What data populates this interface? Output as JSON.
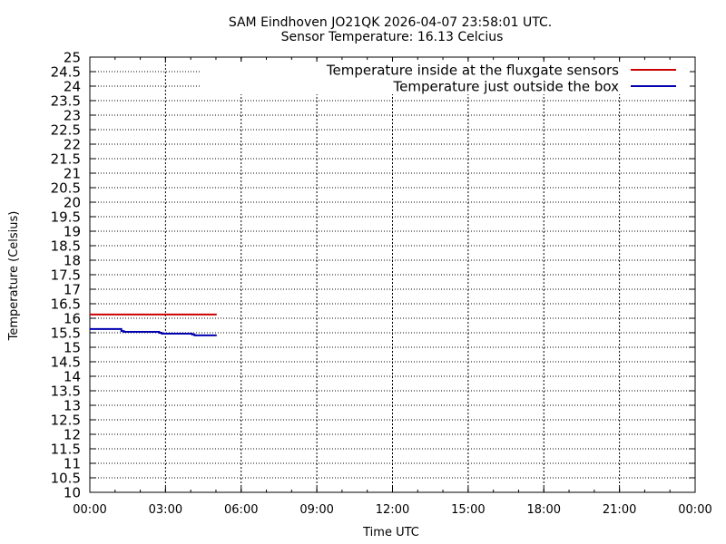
{
  "chart_data": {
    "type": "line",
    "title": "SAM Eindhoven JO21QK 2026-04-07 23:58:01 UTC.",
    "subtitle": "Sensor Temperature: 16.13 Celcius",
    "xlabel": "Time UTC",
    "ylabel": "Temperature (Celsius)",
    "xlim": [
      0,
      24
    ],
    "ylim": [
      10,
      25
    ],
    "grid": true,
    "legend_position": "top-right",
    "x_ticks": [
      {
        "value": 0,
        "label": "00:00"
      },
      {
        "value": 3,
        "label": "03:00"
      },
      {
        "value": 6,
        "label": "06:00"
      },
      {
        "value": 9,
        "label": "09:00"
      },
      {
        "value": 12,
        "label": "12:00"
      },
      {
        "value": 15,
        "label": "15:00"
      },
      {
        "value": 18,
        "label": "18:00"
      },
      {
        "value": 21,
        "label": "21:00"
      },
      {
        "value": 24,
        "label": "00:00"
      }
    ],
    "y_ticks": [
      {
        "value": 10,
        "label": "10"
      },
      {
        "value": 10.5,
        "label": "10.5"
      },
      {
        "value": 11,
        "label": "11"
      },
      {
        "value": 11.5,
        "label": "11.5"
      },
      {
        "value": 12,
        "label": "12"
      },
      {
        "value": 12.5,
        "label": "12.5"
      },
      {
        "value": 13,
        "label": "13"
      },
      {
        "value": 13.5,
        "label": "13.5"
      },
      {
        "value": 14,
        "label": "14"
      },
      {
        "value": 14.5,
        "label": "14.5"
      },
      {
        "value": 15,
        "label": "15"
      },
      {
        "value": 15.5,
        "label": "15.5"
      },
      {
        "value": 16,
        "label": "16"
      },
      {
        "value": 16.5,
        "label": "16.5"
      },
      {
        "value": 17,
        "label": "17"
      },
      {
        "value": 17.5,
        "label": "17.5"
      },
      {
        "value": 18,
        "label": "18"
      },
      {
        "value": 18.5,
        "label": "18.5"
      },
      {
        "value": 19,
        "label": "19"
      },
      {
        "value": 19.5,
        "label": "19.5"
      },
      {
        "value": 20,
        "label": "20"
      },
      {
        "value": 20.5,
        "label": "20.5"
      },
      {
        "value": 21,
        "label": "21"
      },
      {
        "value": 21.5,
        "label": "21.5"
      },
      {
        "value": 22,
        "label": "22"
      },
      {
        "value": 22.5,
        "label": "22.5"
      },
      {
        "value": 23,
        "label": "23"
      },
      {
        "value": 23.5,
        "label": "23.5"
      },
      {
        "value": 24,
        "label": "24"
      },
      {
        "value": 24.5,
        "label": "24.5"
      },
      {
        "value": 25,
        "label": "25"
      }
    ],
    "series": [
      {
        "name": "Temperature inside at the fluxgate sensors",
        "color": "#cc0000",
        "x": [
          0,
          1,
          2,
          3,
          4,
          5.03
        ],
        "y": [
          16.13,
          16.13,
          16.13,
          16.13,
          16.13,
          16.13
        ]
      },
      {
        "name": "Temperature just outside the box",
        "color": "#0000b0",
        "x": [
          0,
          1.2,
          1.25,
          1.25,
          1.35,
          1.35,
          2.75,
          2.75,
          2.85,
          2.85,
          4.05,
          4.05,
          4.15,
          4.15,
          5.03
        ],
        "y": [
          15.63,
          15.63,
          15.63,
          15.56,
          15.56,
          15.53,
          15.53,
          15.5,
          15.5,
          15.47,
          15.47,
          15.44,
          15.44,
          15.41,
          15.41
        ]
      }
    ]
  }
}
